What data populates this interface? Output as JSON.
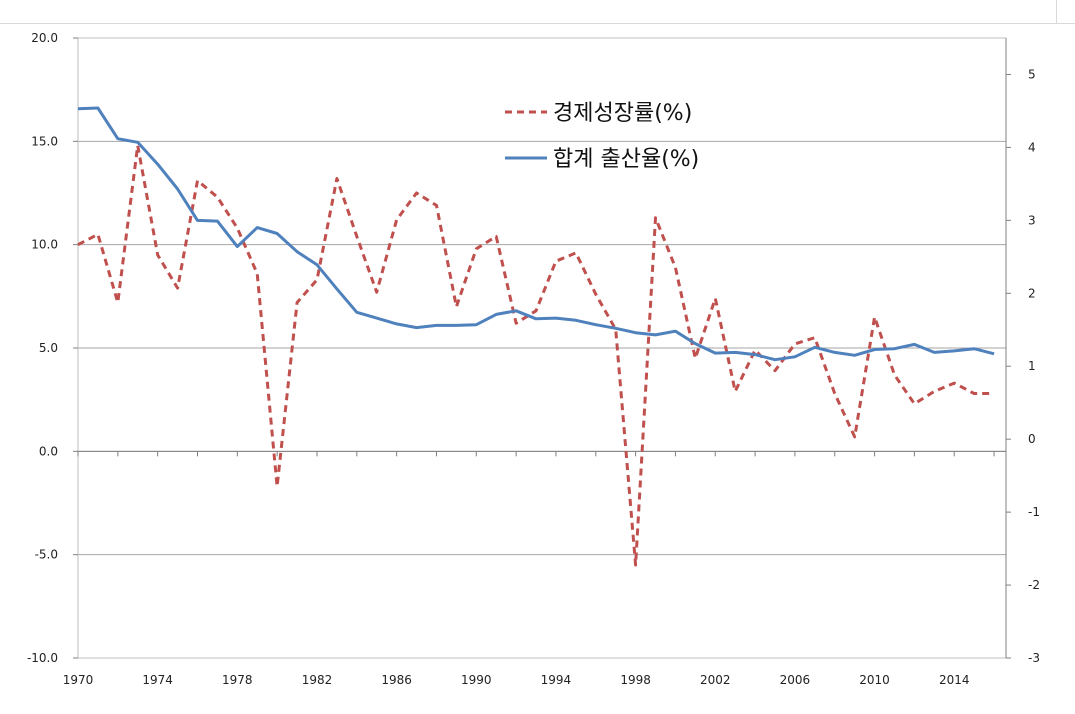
{
  "chart_data": {
    "type": "line",
    "title": "",
    "xlabel": "",
    "ylabel": "",
    "x_ticks": [
      "1970",
      "1974",
      "1978",
      "1982",
      "1986",
      "1990",
      "1994",
      "1998",
      "2002",
      "2006",
      "2010",
      "2014"
    ],
    "y_left_ticks": [
      "20.0",
      "15.0",
      "10.0",
      "5.0",
      "0.0",
      "-5.0",
      "-10.0"
    ],
    "y_right_ticks": [
      "5",
      "4",
      "3",
      "2",
      "1",
      "0",
      "-1",
      "-2",
      "-3"
    ],
    "ylim_left": [
      -10,
      20
    ],
    "ylim_right": [
      -3,
      5.5
    ],
    "xlim": [
      1970,
      2016.6
    ],
    "grid": "horizontal",
    "legend_position": "top-center",
    "series": [
      {
        "name": "경제성장률(%)",
        "axis": "left",
        "color": "#c0504d",
        "dash": "dashed",
        "x": [
          1970,
          1971,
          1972,
          1973,
          1974,
          1975,
          1976,
          1977,
          1978,
          1979,
          1980,
          1981,
          1982,
          1983,
          1984,
          1985,
          1986,
          1987,
          1988,
          1989,
          1990,
          1991,
          1992,
          1993,
          1994,
          1995,
          1996,
          1997,
          1998,
          1999,
          2000,
          2001,
          2002,
          2003,
          2004,
          2005,
          2006,
          2007,
          2008,
          2009,
          2010,
          2011,
          2012,
          2013,
          2014,
          2015,
          2016
        ],
        "values": [
          10.0,
          10.5,
          7.2,
          14.8,
          9.5,
          7.9,
          13.1,
          12.3,
          10.8,
          8.6,
          -1.7,
          7.2,
          8.3,
          13.2,
          10.4,
          7.7,
          11.2,
          12.5,
          11.9,
          7.0,
          9.8,
          10.4,
          6.2,
          6.8,
          9.2,
          9.6,
          7.6,
          5.9,
          -5.5,
          11.3,
          8.9,
          4.5,
          7.4,
          2.9,
          4.9,
          3.9,
          5.2,
          5.5,
          2.8,
          0.7,
          6.5,
          3.7,
          2.3,
          2.9,
          3.3,
          2.8,
          2.8
        ]
      },
      {
        "name": "합계 출산율(%)",
        "axis": "right",
        "color": "#4f81bd",
        "dash": "solid",
        "x": [
          1970,
          1971,
          1972,
          1973,
          1974,
          1975,
          1976,
          1977,
          1978,
          1979,
          1980,
          1981,
          1982,
          1983,
          1984,
          1985,
          1986,
          1987,
          1988,
          1989,
          1990,
          1991,
          1992,
          1993,
          1994,
          1995,
          1996,
          1997,
          1998,
          1999,
          2000,
          2001,
          2002,
          2003,
          2004,
          2005,
          2006,
          2007,
          2008,
          2009,
          2010,
          2011,
          2012,
          2013,
          2014,
          2015,
          2016
        ],
        "values": [
          4.53,
          4.54,
          4.12,
          4.07,
          3.77,
          3.43,
          3.0,
          2.99,
          2.64,
          2.9,
          2.82,
          2.57,
          2.39,
          2.06,
          1.74,
          1.66,
          1.58,
          1.53,
          1.56,
          1.56,
          1.57,
          1.71,
          1.76,
          1.65,
          1.66,
          1.63,
          1.57,
          1.52,
          1.46,
          1.43,
          1.48,
          1.31,
          1.18,
          1.19,
          1.16,
          1.09,
          1.13,
          1.26,
          1.19,
          1.15,
          1.23,
          1.24,
          1.3,
          1.19,
          1.21,
          1.24,
          1.17
        ]
      }
    ]
  }
}
